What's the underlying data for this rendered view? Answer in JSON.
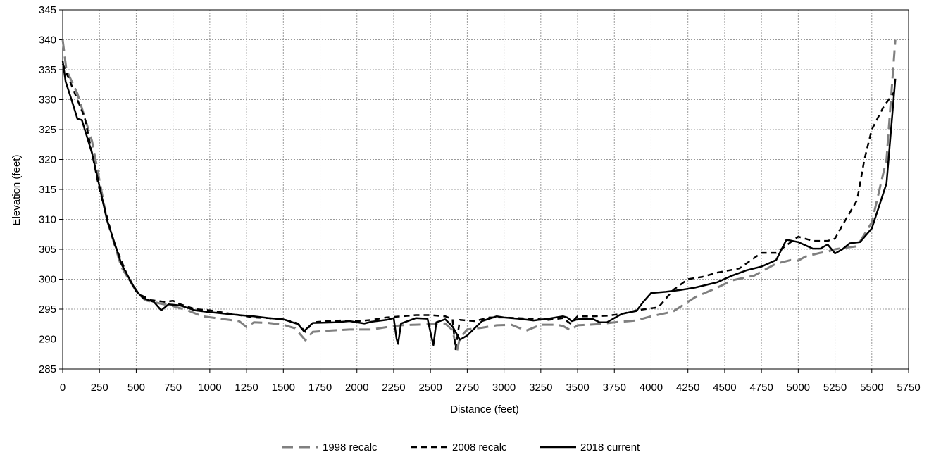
{
  "chart_data": {
    "type": "line",
    "title": "",
    "xlabel": "Distance (feet)",
    "ylabel": "Elevation (feet)",
    "xlim": [
      0,
      5750
    ],
    "ylim": [
      285,
      345
    ],
    "x_ticks": [
      0,
      250,
      500,
      750,
      1000,
      1250,
      1500,
      1750,
      2000,
      2250,
      2500,
      2750,
      3000,
      3250,
      3500,
      3750,
      4000,
      4250,
      4500,
      4750,
      5000,
      5250,
      5500,
      5750
    ],
    "y_ticks": [
      285,
      290,
      295,
      300,
      305,
      310,
      315,
      320,
      325,
      330,
      335,
      340,
      345
    ],
    "grid": true,
    "legend_position": "bottom",
    "series": [
      {
        "name": "1998 recalc",
        "color": "#808080",
        "style": "long-dash",
        "points": [
          [
            0,
            340
          ],
          [
            25,
            335
          ],
          [
            100,
            331
          ],
          [
            200,
            323
          ],
          [
            300,
            310
          ],
          [
            400,
            302
          ],
          [
            500,
            298
          ],
          [
            560,
            296.5
          ],
          [
            650,
            296
          ],
          [
            750,
            295.5
          ],
          [
            850,
            294.8
          ],
          [
            950,
            293.8
          ],
          [
            1100,
            293.3
          ],
          [
            1200,
            293
          ],
          [
            1250,
            292
          ],
          [
            1300,
            292.8
          ],
          [
            1400,
            292.7
          ],
          [
            1500,
            292.4
          ],
          [
            1580,
            291.8
          ],
          [
            1650,
            289.8
          ],
          [
            1700,
            291.2
          ],
          [
            1800,
            291.4
          ],
          [
            1950,
            291.6
          ],
          [
            2100,
            291.6
          ],
          [
            2200,
            292
          ],
          [
            2300,
            292.3
          ],
          [
            2400,
            292.4
          ],
          [
            2500,
            292.5
          ],
          [
            2600,
            292.6
          ],
          [
            2650,
            291.5
          ],
          [
            2680,
            288
          ],
          [
            2700,
            290.2
          ],
          [
            2750,
            291.6
          ],
          [
            2850,
            291.9
          ],
          [
            2950,
            292.3
          ],
          [
            3050,
            292.4
          ],
          [
            3150,
            291.4
          ],
          [
            3250,
            292.4
          ],
          [
            3350,
            292.4
          ],
          [
            3400,
            292.2
          ],
          [
            3450,
            291.5
          ],
          [
            3500,
            292.3
          ],
          [
            3650,
            292.5
          ],
          [
            3750,
            292.8
          ],
          [
            3900,
            293.1
          ],
          [
            4000,
            293.8
          ],
          [
            4150,
            294.6
          ],
          [
            4300,
            297
          ],
          [
            4450,
            298.6
          ],
          [
            4550,
            299.8
          ],
          [
            4700,
            300.6
          ],
          [
            4850,
            302.6
          ],
          [
            4950,
            303.2
          ],
          [
            5000,
            303.1
          ],
          [
            5050,
            303.8
          ],
          [
            5150,
            304.4
          ],
          [
            5200,
            304.6
          ],
          [
            5250,
            305
          ],
          [
            5300,
            305.2
          ],
          [
            5400,
            305.5
          ],
          [
            5500,
            309.5
          ],
          [
            5600,
            320
          ],
          [
            5660,
            340
          ]
        ]
      },
      {
        "name": "2008 recalc",
        "color": "#000000",
        "style": "short-dash",
        "points": [
          [
            0,
            336
          ],
          [
            50,
            333
          ],
          [
            150,
            327
          ],
          [
            250,
            315
          ],
          [
            350,
            306
          ],
          [
            450,
            300
          ],
          [
            520,
            297.5
          ],
          [
            600,
            296.5
          ],
          [
            700,
            296.2
          ],
          [
            750,
            296.4
          ],
          [
            800,
            295.8
          ],
          [
            900,
            295
          ],
          [
            1000,
            294.8
          ],
          [
            1100,
            294.4
          ],
          [
            1200,
            294
          ],
          [
            1300,
            293.6
          ],
          [
            1400,
            293.5
          ],
          [
            1500,
            293.3
          ],
          [
            1600,
            292.6
          ],
          [
            1650,
            291.2
          ],
          [
            1700,
            292.8
          ],
          [
            1800,
            293
          ],
          [
            1900,
            293.1
          ],
          [
            2000,
            293
          ],
          [
            2100,
            293.2
          ],
          [
            2200,
            293.6
          ],
          [
            2300,
            293.8
          ],
          [
            2400,
            294
          ],
          [
            2500,
            294
          ],
          [
            2600,
            293.8
          ],
          [
            2650,
            293.3
          ],
          [
            2670,
            288.3
          ],
          [
            2700,
            293.2
          ],
          [
            2800,
            293
          ],
          [
            2900,
            293.6
          ],
          [
            3000,
            293.6
          ],
          [
            3100,
            293.5
          ],
          [
            3200,
            293.4
          ],
          [
            3300,
            293.2
          ],
          [
            3400,
            293.5
          ],
          [
            3450,
            292.6
          ],
          [
            3500,
            293.8
          ],
          [
            3600,
            293.8
          ],
          [
            3700,
            293.9
          ],
          [
            3800,
            294.2
          ],
          [
            3900,
            294.8
          ],
          [
            4050,
            295.3
          ],
          [
            4150,
            298.2
          ],
          [
            4250,
            300
          ],
          [
            4350,
            300.4
          ],
          [
            4450,
            301.1
          ],
          [
            4600,
            301.8
          ],
          [
            4750,
            304.4
          ],
          [
            4850,
            304.4
          ],
          [
            4950,
            306.2
          ],
          [
            5000,
            307.1
          ],
          [
            5100,
            306.4
          ],
          [
            5200,
            306.4
          ],
          [
            5250,
            306.8
          ],
          [
            5300,
            309
          ],
          [
            5400,
            313.2
          ],
          [
            5450,
            320
          ],
          [
            5500,
            325
          ],
          [
            5580,
            328.8
          ],
          [
            5650,
            331.2
          ]
        ]
      },
      {
        "name": "2018 current",
        "color": "#000000",
        "style": "solid",
        "points": [
          [
            0,
            336.5
          ],
          [
            20,
            333
          ],
          [
            60,
            330
          ],
          [
            100,
            326.8
          ],
          [
            130,
            326.6
          ],
          [
            200,
            321
          ],
          [
            300,
            310
          ],
          [
            400,
            302.5
          ],
          [
            500,
            298
          ],
          [
            550,
            296.8
          ],
          [
            620,
            296.2
          ],
          [
            670,
            294.8
          ],
          [
            720,
            295.8
          ],
          [
            800,
            295.6
          ],
          [
            900,
            294.8
          ],
          [
            1000,
            294.5
          ],
          [
            1200,
            294
          ],
          [
            1300,
            293.8
          ],
          [
            1400,
            293.5
          ],
          [
            1500,
            293.3
          ],
          [
            1600,
            292.5
          ],
          [
            1640,
            291.3
          ],
          [
            1700,
            292.7
          ],
          [
            1850,
            292.8
          ],
          [
            1950,
            293
          ],
          [
            2050,
            292.6
          ],
          [
            2100,
            292.9
          ],
          [
            2200,
            293.2
          ],
          [
            2250,
            293.5
          ],
          [
            2270,
            290
          ],
          [
            2280,
            289.2
          ],
          [
            2300,
            292.6
          ],
          [
            2400,
            293.5
          ],
          [
            2480,
            293.4
          ],
          [
            2510,
            290
          ],
          [
            2520,
            289
          ],
          [
            2540,
            292.8
          ],
          [
            2600,
            293.3
          ],
          [
            2650,
            292.1
          ],
          [
            2700,
            289.9
          ],
          [
            2750,
            290.6
          ],
          [
            2850,
            293
          ],
          [
            2950,
            293.8
          ],
          [
            3000,
            293.6
          ],
          [
            3100,
            293.4
          ],
          [
            3200,
            293.1
          ],
          [
            3300,
            293.4
          ],
          [
            3400,
            293.8
          ],
          [
            3430,
            293.6
          ],
          [
            3460,
            293
          ],
          [
            3500,
            293.3
          ],
          [
            3600,
            293.4
          ],
          [
            3650,
            292.8
          ],
          [
            3700,
            292.8
          ],
          [
            3800,
            294.2
          ],
          [
            3900,
            294.7
          ],
          [
            3950,
            296.3
          ],
          [
            4000,
            297.7
          ],
          [
            4100,
            297.9
          ],
          [
            4200,
            298.2
          ],
          [
            4300,
            298.6
          ],
          [
            4450,
            299.5
          ],
          [
            4550,
            300.6
          ],
          [
            4650,
            301.5
          ],
          [
            4750,
            302.1
          ],
          [
            4850,
            303.2
          ],
          [
            4920,
            306.6
          ],
          [
            5000,
            306.2
          ],
          [
            5100,
            305.1
          ],
          [
            5150,
            305.1
          ],
          [
            5200,
            305.8
          ],
          [
            5250,
            304.3
          ],
          [
            5300,
            305
          ],
          [
            5350,
            306
          ],
          [
            5420,
            306.2
          ],
          [
            5500,
            308.5
          ],
          [
            5600,
            316
          ],
          [
            5660,
            333.5
          ]
        ]
      }
    ]
  }
}
